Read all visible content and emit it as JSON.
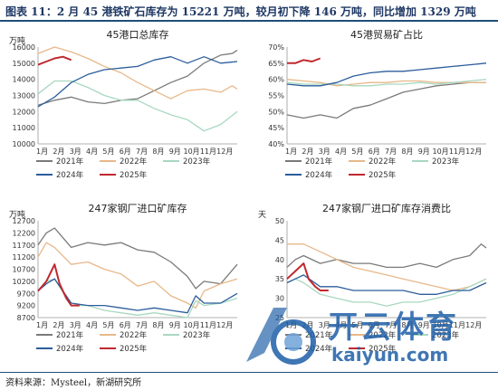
{
  "figure": {
    "title": "图表 11：2 月 45 港铁矿石库存为 15221 万吨，较月初下降 146 万吨，同比增加 1329 万吨",
    "source": "资料来源：Mysteel，新湖研究所"
  },
  "watermark": {
    "brand_cn": "开云体育",
    "brand_en": "kaiyun.com"
  },
  "chart_data": [
    {
      "type": "line",
      "title": "45港口总库存",
      "ylabel": "万吨",
      "ylim": [
        10000,
        16000
      ],
      "yticks": [
        "10000",
        "11000",
        "12000",
        "13000",
        "14000",
        "15000",
        "16000"
      ],
      "xticks": [
        "1月",
        "2月",
        "3月",
        "4月",
        "5月",
        "6月",
        "7月",
        "8月",
        "9月",
        "10月",
        "11月",
        "12月"
      ],
      "xlim": [
        0,
        12
      ],
      "legend": [
        "2021年",
        "2022年",
        "2023年",
        "2024年",
        "2025年"
      ],
      "series": [
        {
          "name": "2021年",
          "color": "#7a7a7a",
          "x": [
            0,
            1,
            2,
            3,
            4,
            5,
            6,
            7,
            8,
            9,
            10,
            11,
            11.7,
            12
          ],
          "values": [
            12400,
            12700,
            12900,
            12600,
            12500,
            12700,
            12800,
            13300,
            13800,
            14200,
            15000,
            15500,
            15600,
            15800
          ]
        },
        {
          "name": "2022年",
          "color": "#e8b88a",
          "x": [
            0,
            1,
            2,
            3,
            4,
            5,
            6,
            7,
            8,
            9,
            10,
            11,
            11.7,
            12
          ],
          "values": [
            15600,
            16000,
            15700,
            15300,
            14800,
            14400,
            13800,
            13300,
            12800,
            13300,
            13400,
            13200,
            13600,
            13400
          ]
        },
        {
          "name": "2023年",
          "color": "#a8d8c0",
          "x": [
            0,
            1,
            2,
            3,
            4,
            5,
            6,
            7,
            8,
            9,
            10,
            11,
            12
          ],
          "values": [
            13100,
            13900,
            13900,
            13500,
            13000,
            12700,
            12700,
            12200,
            11800,
            11500,
            10800,
            11200,
            12000
          ]
        },
        {
          "name": "2024年",
          "color": "#2b5d9c",
          "x": [
            0,
            1,
            2,
            3,
            4,
            5,
            6,
            7,
            8,
            9,
            10,
            11,
            12
          ],
          "values": [
            12300,
            12900,
            13800,
            14300,
            14600,
            14700,
            14800,
            15200,
            15400,
            15000,
            15400,
            15000,
            15100
          ]
        },
        {
          "name": "2025年",
          "color": "#c0282e",
          "x": [
            0,
            0.5,
            1,
            1.5,
            2
          ],
          "values": [
            14900,
            15100,
            15300,
            15400,
            15200
          ]
        }
      ]
    },
    {
      "type": "line",
      "title": "45港贸易矿占比",
      "ylabel": "",
      "ylim": [
        40,
        70
      ],
      "yticks": [
        "40%",
        "45%",
        "50%",
        "55%",
        "60%",
        "65%",
        "70%"
      ],
      "xticks": [
        "1月",
        "2月",
        "3月",
        "4月",
        "5月",
        "6月",
        "7月",
        "8月",
        "9月",
        "10月",
        "11月",
        "12月"
      ],
      "xlim": [
        0,
        12
      ],
      "legend": [
        "2021年",
        "2022年",
        "2023年",
        "2024年",
        "2025年"
      ],
      "series": [
        {
          "name": "2021年",
          "color": "#7a7a7a",
          "x": [
            0,
            1,
            2,
            3,
            4,
            5,
            6,
            7,
            8,
            9,
            10,
            11,
            12
          ],
          "values": [
            49,
            48,
            49,
            48,
            51,
            52,
            54,
            56,
            57,
            58,
            58.5,
            59,
            59
          ]
        },
        {
          "name": "2022年",
          "color": "#e8b88a",
          "x": [
            0,
            1,
            2,
            3,
            4,
            5,
            6,
            7,
            8,
            9,
            10,
            11,
            12
          ],
          "values": [
            60,
            59.5,
            59,
            58,
            58.5,
            59,
            59,
            59.5,
            59.5,
            59,
            59,
            59,
            59
          ]
        },
        {
          "name": "2023年",
          "color": "#a8d8c0",
          "x": [
            0,
            1,
            2,
            3,
            4,
            5,
            6,
            7,
            8,
            9,
            10,
            11,
            12
          ],
          "values": [
            59,
            58.5,
            58.5,
            58.5,
            58,
            58,
            58.5,
            58.5,
            59,
            58.5,
            59,
            59.5,
            60
          ]
        },
        {
          "name": "2024年",
          "color": "#2b5d9c",
          "x": [
            0,
            1,
            2,
            3,
            4,
            5,
            6,
            7,
            8,
            9,
            10,
            11,
            12
          ],
          "values": [
            58.5,
            58,
            58,
            59,
            61,
            62,
            62.5,
            62.5,
            63,
            63.5,
            64,
            64.5,
            65
          ]
        },
        {
          "name": "2025年",
          "color": "#c0282e",
          "x": [
            0,
            0.5,
            1,
            1.5,
            2
          ],
          "values": [
            65,
            65,
            66,
            65.5,
            66.5
          ]
        }
      ]
    },
    {
      "type": "line",
      "title": "247家钢厂进口矿库存",
      "ylabel": "万吨",
      "ylim": [
        8700,
        12700
      ],
      "yticks": [
        "8700",
        "9200",
        "9700",
        "10200",
        "10700",
        "11200",
        "11700",
        "12200",
        "12700"
      ],
      "xticks": [
        "1月",
        "2月",
        "3月",
        "4月",
        "5月",
        "6月",
        "7月",
        "8月",
        "9月",
        "10月",
        "11月",
        "12月"
      ],
      "xlim": [
        0,
        12
      ],
      "legend": [
        "2021年",
        "2022年",
        "2023年",
        "2024年",
        "2025年"
      ],
      "series": [
        {
          "name": "2021年",
          "color": "#7a7a7a",
          "x": [
            0,
            0.5,
            1,
            2,
            3,
            4,
            5,
            6,
            7,
            8,
            9,
            9.5,
            10,
            11,
            12
          ],
          "values": [
            11700,
            12200,
            12400,
            11600,
            11800,
            11700,
            11800,
            11500,
            11400,
            11000,
            10400,
            9900,
            10200,
            10100,
            10900
          ]
        },
        {
          "name": "2022年",
          "color": "#e8b88a",
          "x": [
            0,
            0.5,
            1,
            2,
            3,
            4,
            5,
            6,
            7,
            8,
            9,
            9.5,
            10,
            11,
            12
          ],
          "values": [
            11200,
            11800,
            11600,
            10900,
            11000,
            10700,
            10500,
            10000,
            10200,
            9600,
            9300,
            9100,
            9800,
            10100,
            10300
          ]
        },
        {
          "name": "2023年",
          "color": "#a8d8c0",
          "x": [
            0,
            0.5,
            1,
            2,
            3,
            4,
            5,
            6,
            7,
            8,
            9,
            9.5,
            10,
            11,
            12
          ],
          "values": [
            9800,
            10200,
            10300,
            9200,
            9200,
            9000,
            8900,
            8800,
            8900,
            8800,
            8700,
            9400,
            9200,
            9300,
            9500
          ]
        },
        {
          "name": "2024年",
          "color": "#2b5d9c",
          "x": [
            0,
            0.5,
            1,
            2,
            3,
            4,
            5,
            6,
            7,
            8,
            9,
            9.5,
            10,
            11,
            12
          ],
          "values": [
            9800,
            10100,
            10300,
            9300,
            9200,
            9200,
            9100,
            9000,
            9100,
            9000,
            8900,
            9600,
            9300,
            9300,
            9700
          ]
        },
        {
          "name": "2025年",
          "color": "#c0282e",
          "x": [
            0,
            0.5,
            1,
            1.3,
            1.7,
            2,
            2.5
          ],
          "values": [
            9800,
            10200,
            10900,
            10100,
            9500,
            9200,
            9200
          ]
        }
      ]
    },
    {
      "type": "line",
      "title": "247家钢厂进口矿库存消费比",
      "ylabel": "天",
      "ylim": [
        25,
        50
      ],
      "yticks": [
        "25",
        "30",
        "35",
        "40",
        "45",
        "50"
      ],
      "xticks": [
        "1月",
        "2月",
        "3月",
        "4月",
        "5月",
        "6月",
        "7月",
        "8月",
        "9月",
        "10月",
        "11月",
        "12月"
      ],
      "xlim": [
        0,
        12
      ],
      "legend": [
        "2021年",
        "2022年",
        "2023年",
        "2024年",
        "2025年"
      ],
      "series": [
        {
          "name": "2021年",
          "color": "#7a7a7a",
          "x": [
            0,
            0.5,
            1,
            2,
            3,
            4,
            5,
            6,
            7,
            8,
            9,
            10,
            11,
            11.7,
            12
          ],
          "values": [
            38,
            40,
            41,
            39,
            40,
            39,
            39,
            38,
            38,
            39,
            38,
            40,
            41,
            44,
            43
          ]
        },
        {
          "name": "2022年",
          "color": "#e8b88a",
          "x": [
            0,
            0.5,
            1,
            2,
            3,
            4,
            5,
            6,
            7,
            8,
            9,
            10,
            11,
            12
          ],
          "values": [
            44,
            44,
            44,
            42,
            40,
            38,
            37,
            36,
            35,
            34,
            33,
            32,
            33,
            35
          ]
        },
        {
          "name": "2023年",
          "color": "#a8d8c0",
          "x": [
            0,
            0.5,
            1,
            2,
            3,
            4,
            5,
            6,
            7,
            8,
            9,
            10,
            11,
            12
          ],
          "values": [
            34,
            35,
            34,
            31,
            30,
            29,
            29,
            28,
            29,
            29,
            30,
            31,
            33,
            35
          ]
        },
        {
          "name": "2024年",
          "color": "#2b5d9c",
          "x": [
            0,
            0.5,
            1,
            2,
            3,
            4,
            5,
            6,
            7,
            8,
            9,
            10,
            11,
            12
          ],
          "values": [
            34,
            35,
            36,
            33,
            33,
            32,
            32,
            32,
            32,
            31,
            31,
            32,
            32,
            34
          ]
        },
        {
          "name": "2025年",
          "color": "#c0282e",
          "x": [
            0,
            0.5,
            1,
            1.3,
            1.7,
            2,
            2.5
          ],
          "values": [
            35,
            37,
            39,
            35,
            33,
            32,
            32
          ]
        }
      ]
    }
  ]
}
